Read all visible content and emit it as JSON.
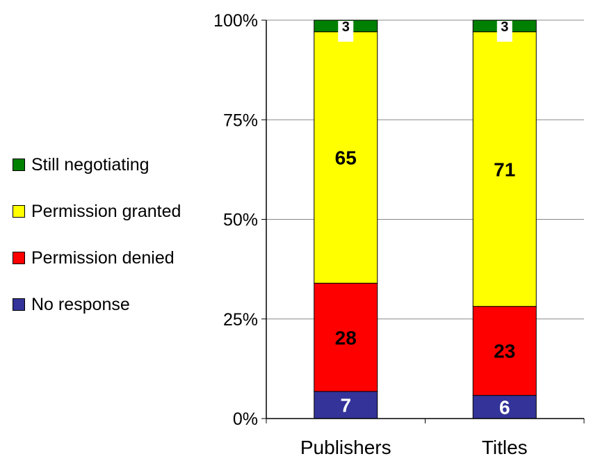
{
  "chart_data": {
    "type": "bar",
    "stacked": true,
    "percent_stacked": true,
    "categories": [
      "Publishers",
      "Titles"
    ],
    "series": [
      {
        "name": "No response",
        "color": "#333399",
        "values": [
          7,
          6
        ],
        "label_color": "#ffffff"
      },
      {
        "name": "Permission denied",
        "color": "#ff0000",
        "values": [
          28,
          23
        ],
        "label_color": "#000000"
      },
      {
        "name": "Permission granted",
        "color": "#ffff00",
        "values": [
          65,
          71
        ],
        "label_color": "#000000"
      },
      {
        "name": "Still negotiating",
        "color": "#008000",
        "values": [
          3,
          3
        ],
        "label_color": "#000000"
      }
    ],
    "y_ticks": [
      "0%",
      "25%",
      "50%",
      "75%",
      "100%"
    ],
    "ylim": [
      0,
      100
    ],
    "grid": true,
    "legend_position": "left",
    "legend_order": [
      "Still negotiating",
      "Permission granted",
      "Permission denied",
      "No response"
    ]
  }
}
